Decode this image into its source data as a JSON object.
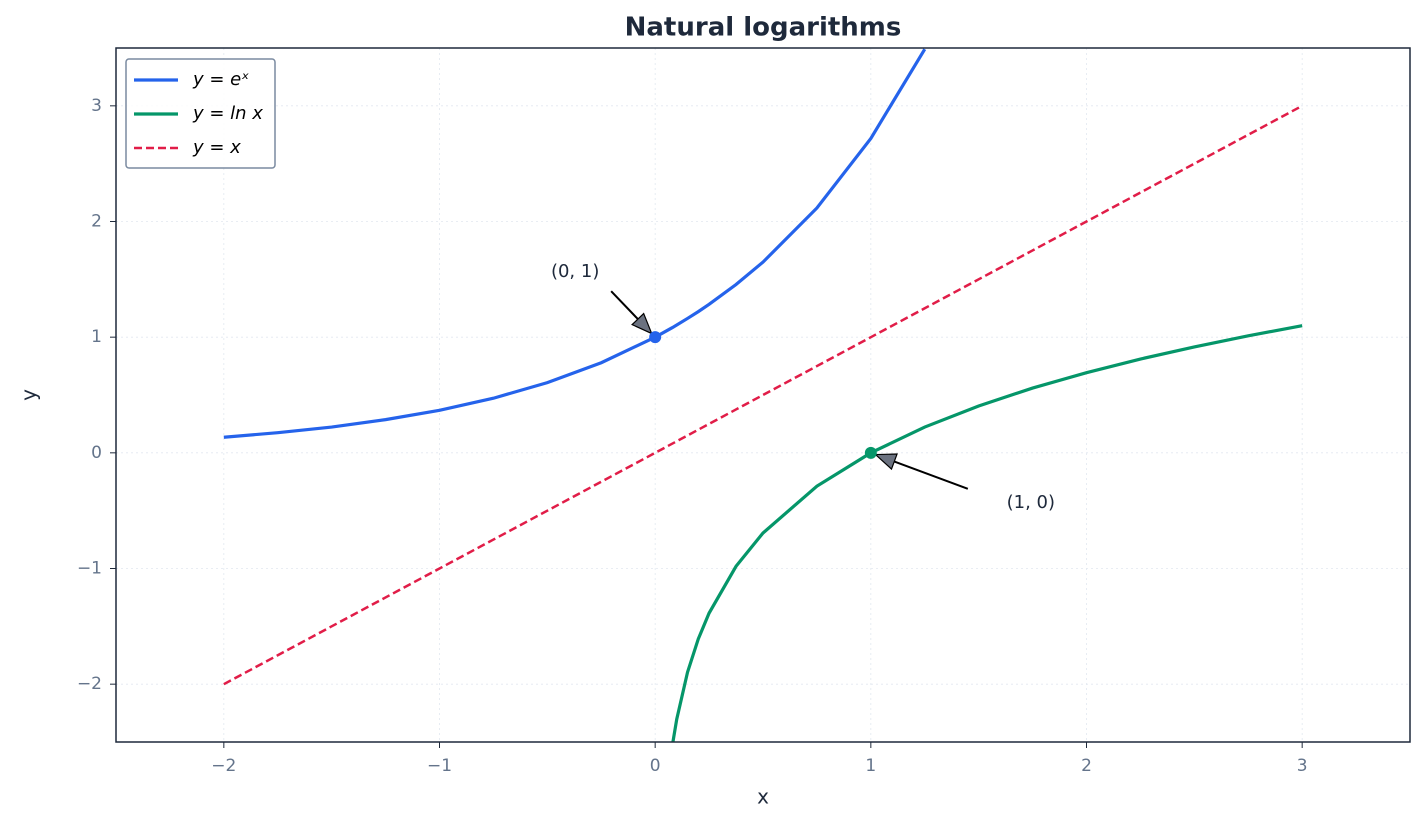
{
  "chart_data": {
    "type": "line",
    "title": "Natural logarithms",
    "xlabel": "x",
    "ylabel": "y",
    "x": [
      -2,
      -1.75,
      -1.5,
      -1.25,
      -1,
      -0.75,
      -0.5,
      -0.25,
      0,
      0.08,
      0.1,
      0.15,
      0.2,
      0.25,
      0.375,
      0.5,
      0.75,
      1,
      1.25,
      1.5,
      1.75,
      2,
      2.25,
      2.5,
      2.75,
      3
    ],
    "series": [
      {
        "name": "y = eˣ",
        "color": "#2563eb",
        "dash": false,
        "values": [
          0.135,
          0.174,
          0.223,
          0.287,
          0.368,
          0.472,
          0.607,
          0.779,
          1,
          1.083,
          1.105,
          1.162,
          1.221,
          1.284,
          1.455,
          1.649,
          2.117,
          2.718,
          3.49,
          null,
          null,
          null,
          null,
          null,
          null,
          null
        ]
      },
      {
        "name": "y = ln x",
        "color": "#059669",
        "dash": false,
        "values": [
          null,
          null,
          null,
          null,
          null,
          null,
          null,
          null,
          null,
          -2.526,
          -2.303,
          -1.897,
          -1.609,
          -1.386,
          -0.981,
          -0.693,
          -0.288,
          0,
          0.223,
          0.405,
          0.56,
          0.693,
          0.811,
          0.916,
          1.012,
          1.099
        ]
      },
      {
        "name": "y = x",
        "color": "#e11d48",
        "dash": true,
        "values": [
          -2,
          -1.75,
          -1.5,
          -1.25,
          -1,
          -0.75,
          -0.5,
          -0.25,
          0,
          0.08,
          0.1,
          0.15,
          0.2,
          0.25,
          0.375,
          0.5,
          0.75,
          1,
          1.25,
          1.5,
          1.75,
          2,
          2.25,
          2.5,
          2.75,
          3
        ]
      }
    ],
    "annotations": [
      {
        "text": "(0, 1)",
        "x": 0,
        "y": 1,
        "color": "#2563eb"
      },
      {
        "text": "(1, 0)",
        "x": 1,
        "y": 0,
        "color": "#059669"
      }
    ],
    "xlim": [
      -2.5,
      3.5
    ],
    "ylim": [
      -2.5,
      3.5
    ],
    "xticks": [
      {
        "value": -2,
        "label": "−2"
      },
      {
        "value": -1,
        "label": "−1"
      },
      0,
      1,
      2,
      3
    ],
    "yticks": [
      {
        "value": -2,
        "label": "−2"
      },
      {
        "value": -1,
        "label": "−1"
      },
      0,
      1,
      2,
      3
    ],
    "grid": true,
    "legend": "upper left"
  }
}
